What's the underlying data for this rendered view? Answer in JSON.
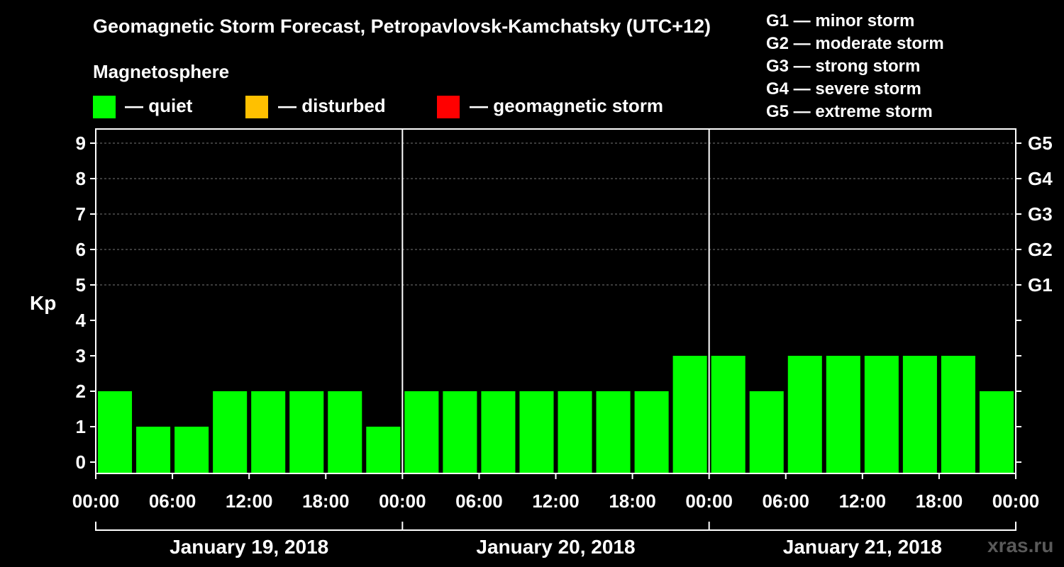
{
  "header": {
    "title": "Geomagnetic Storm Forecast, Petropavlovsk-Kamchatsky (UTC+12)"
  },
  "legend": {
    "heading": "Magnetosphere",
    "items": [
      {
        "label": "— quiet",
        "color": "#00ff00"
      },
      {
        "label": "— disturbed",
        "color": "#ffc000"
      },
      {
        "label": "— geomagnetic storm",
        "color": "#ff0000"
      }
    ]
  },
  "storm_scale": [
    "G1 — minor storm",
    "G2 — moderate storm",
    "G3 — strong storm",
    "G4 — severe storm",
    "G5 — extreme storm"
  ],
  "watermark": "xras.ru",
  "chart_data": {
    "type": "bar",
    "title": "Geomagnetic Storm Forecast, Petropavlovsk-Kamchatsky (UTC+12)",
    "ylabel": "Kp",
    "ylim": [
      0,
      9
    ],
    "yticks": [
      0,
      1,
      2,
      3,
      4,
      5,
      6,
      7,
      8,
      9
    ],
    "right_axis": [
      {
        "kp": 5,
        "label": "G1"
      },
      {
        "kp": 6,
        "label": "G2"
      },
      {
        "kp": 7,
        "label": "G3"
      },
      {
        "kp": 8,
        "label": "G4"
      },
      {
        "kp": 9,
        "label": "G5"
      }
    ],
    "grid": "dashed horizontal at Kp 5-9",
    "days": [
      "January 19, 2018",
      "January 20, 2018",
      "January 21, 2018"
    ],
    "x_tick_labels": [
      "00:00",
      "06:00",
      "12:00",
      "18:00",
      "00:00",
      "06:00",
      "12:00",
      "18:00",
      "00:00",
      "06:00",
      "12:00",
      "18:00",
      "00:00"
    ],
    "interval_hours": 3,
    "values": [
      2,
      1,
      1,
      2,
      2,
      2,
      2,
      1,
      2,
      2,
      2,
      2,
      2,
      2,
      2,
      3,
      3,
      2,
      3,
      3,
      3,
      3,
      3,
      2
    ],
    "bar_color": "#00ff00"
  }
}
